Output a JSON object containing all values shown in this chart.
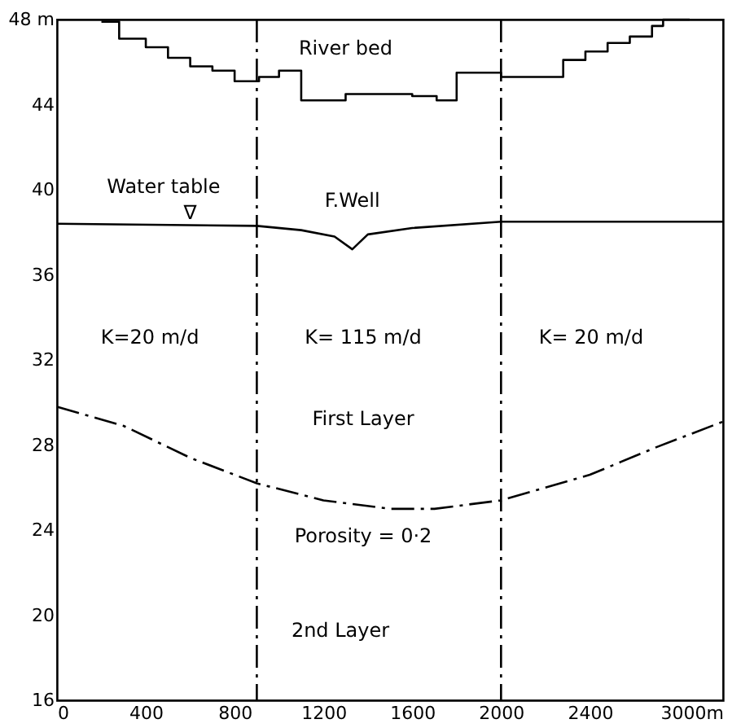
{
  "chart_data": {
    "type": "line",
    "xlim": [
      0,
      3000
    ],
    "ylim": [
      16,
      48
    ],
    "xticks": [
      0,
      400,
      800,
      1200,
      1600,
      2000,
      2400,
      {
        "value": 3000,
        "label": "3000m"
      }
    ],
    "yticks": [
      16,
      20,
      24,
      28,
      32,
      36,
      40,
      44,
      {
        "value": 48,
        "label": "48 m"
      }
    ],
    "grid": false,
    "marker": "none",
    "series": [
      {
        "type": "step",
        "color": "#000000",
        "line_style": "solid",
        "x": [
          200,
          280,
          400,
          500,
          600,
          700,
          800,
          910,
          1000,
          1100,
          1300,
          1600,
          1710,
          1800,
          2000,
          2080,
          2280,
          2380,
          2480,
          2580,
          2680,
          2730,
          2850
        ],
        "values": [
          47.9,
          47.1,
          46.7,
          46.2,
          45.8,
          45.6,
          45.1,
          45.3,
          45.6,
          44.2,
          44.5,
          44.4,
          44.2,
          45.5,
          45.3,
          45.3,
          46.1,
          46.5,
          46.9,
          47.2,
          47.7,
          48.0,
          48.0
        ]
      },
      {
        "color": "#000000",
        "line_style": "solid",
        "x": [
          0,
          900,
          1100,
          1250,
          1330,
          1400,
          1600,
          2000,
          3000
        ],
        "values": [
          38.4,
          38.3,
          38.1,
          37.8,
          37.2,
          37.9,
          38.2,
          38.5,
          38.5
        ]
      },
      {
        "color": "#000000",
        "line_style": "dashed",
        "x": [
          0,
          300,
          600,
          900,
          1200,
          1500,
          1700,
          2000,
          2400,
          2700,
          3000
        ],
        "values": [
          29.8,
          28.9,
          27.4,
          26.2,
          25.4,
          25.0,
          25.0,
          25.4,
          26.6,
          27.9,
          29.1
        ]
      }
    ],
    "ref_lines": [
      {
        "axis": "x",
        "value": 900,
        "color": "#000000",
        "line_style": "dashed"
      },
      {
        "axis": "x",
        "value": 2000,
        "color": "#000000",
        "line_style": "dashed"
      }
    ],
    "annotations": [
      {
        "text": "River bed",
        "x": 1300,
        "y": 44.5
      },
      {
        "text": "Water table",
        "x": 480,
        "y": 38.3
      },
      {
        "text": "∇",
        "x": 600,
        "y": 38.3
      },
      {
        "text": "F.Well",
        "x": 1330,
        "y": 37.2
      },
      "K=20 m/d",
      "K= 115  m/d",
      "K= 20 m/d",
      "First Layer",
      "Porosity = 0·2",
      "2nd Layer"
    ]
  }
}
